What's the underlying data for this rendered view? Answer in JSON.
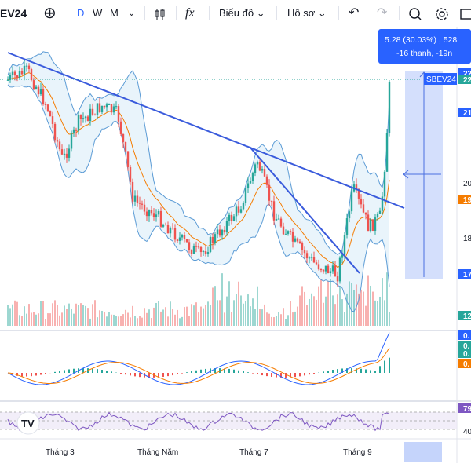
{
  "toolbar": {
    "symbol": "EV24",
    "intervals": [
      "D",
      "W",
      "M"
    ],
    "chart_type_label": "Biểu đồ",
    "profile_label": "Hồ sơ",
    "indicators_glyph": "fx"
  },
  "tooltip": {
    "line1": "5.28 (30.03%) , 528",
    "line2": "-16 thanh, -19n"
  },
  "labels": {
    "legend_symbol": "SBEV24",
    "tv_logo": "TV"
  },
  "colors": {
    "up": "#26a69a",
    "down": "#ef5350",
    "trendline": "#3a5bdc",
    "bollinger": "#5b9bd5",
    "bollinger_fill": "#e3f1fa",
    "ema": "#f57c00",
    "rsi": "#7e57c2",
    "measure_fill": "#c5d4fb",
    "measure_line": "#4a6fe0"
  },
  "chart_data": {
    "type": "candlestick",
    "x_tick_labels": [
      "Tháng 3",
      "Tháng Năm",
      "Tháng 7",
      "Tháng 9"
    ],
    "right_axis_labels": [
      "22",
      "22",
      "21",
      "20",
      "19",
      "18",
      "17",
      "12",
      "0.",
      "0.",
      "0.",
      "0.",
      "79",
      "40"
    ],
    "rsi_levels": [
      70,
      50,
      30
    ],
    "measure": {
      "change": 5.28,
      "change_pct": 30.03,
      "bars": -16
    }
  }
}
